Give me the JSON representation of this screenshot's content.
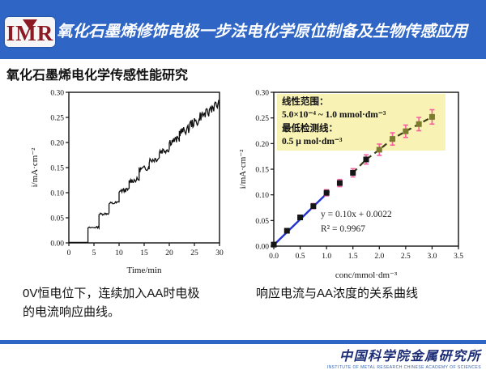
{
  "header": {
    "logo_text": "IMR",
    "title": "氧化石墨烯修饰电极一步法电化学原位制备及生物传感应用",
    "bg_color": "#2f66c6",
    "logo_color": "#8b1a24"
  },
  "subtitle": "氧化石墨烯电化学传感性能研究",
  "captions": {
    "left": "0V恒电位下，连续加入AA时电极\n的电流响应曲线。",
    "right": "响应电流与AA浓度的关系曲线"
  },
  "footer": {
    "institute_cn": "中国科学院金属研究所",
    "institute_en": "INSTITUTE OF METAL RESEARCH CHINESE ACADEMY OF SCIENCES",
    "bar_color": "#2f66c6",
    "text_color": "#1c2d78"
  },
  "chart_data": [
    {
      "type": "line",
      "title": "",
      "xlabel": "Time/min",
      "ylabel": "i/mA·cm⁻²",
      "xlim": [
        0,
        30
      ],
      "ylim": [
        0,
        0.3
      ],
      "xticks": [
        "0",
        "5",
        "10",
        "15",
        "20",
        "25",
        "30"
      ],
      "yticks": [
        "0.00",
        "0.05",
        "0.10",
        "0.15",
        "0.20",
        "0.25",
        "0.30"
      ],
      "line_color": "#111111",
      "description": "Amperometric staircase current response at 0 V with successive AA additions",
      "step_times": [
        0,
        3.8,
        6,
        8,
        10,
        12,
        14,
        16,
        18,
        20,
        22,
        24,
        26,
        28,
        30
      ],
      "step_levels": [
        0.001,
        0.03,
        0.057,
        0.078,
        0.103,
        0.123,
        0.146,
        0.164,
        0.182,
        0.201,
        0.22,
        0.236,
        0.252,
        0.268
      ]
    },
    {
      "type": "scatter",
      "title": "",
      "xlabel": "conc/mmol·dm⁻³",
      "ylabel": "i/mA·cm⁻²",
      "xlim": [
        0,
        3.5
      ],
      "ylim": [
        0,
        0.3
      ],
      "xticks": [
        "0.0",
        "0.5",
        "1.0",
        "1.5",
        "2.0",
        "2.5",
        "3.0",
        "3.5"
      ],
      "yticks": [
        "0.00",
        "0.05",
        "0.10",
        "0.15",
        "0.20",
        "0.25",
        "0.30"
      ],
      "x": [
        0,
        0.25,
        0.5,
        0.75,
        1.0,
        1.25,
        1.5,
        1.75,
        2.0,
        2.25,
        2.5,
        2.75,
        3.0
      ],
      "y": [
        0.003,
        0.03,
        0.056,
        0.078,
        0.104,
        0.123,
        0.143,
        0.169,
        0.188,
        0.209,
        0.224,
        0.238,
        0.252
      ],
      "yerr": [
        0.003,
        0.004,
        0.004,
        0.005,
        0.006,
        0.007,
        0.008,
        0.009,
        0.011,
        0.012,
        0.012,
        0.013,
        0.014
      ],
      "fit_label_1": "y = 0.10x + 0.0022",
      "fit_label_2": "R² = 0.9967",
      "fit_slope": 0.1,
      "fit_intercept": 0.0022,
      "fit_range": [
        0,
        1.05
      ],
      "dash_range_start_index": 6,
      "annotation": {
        "lines": [
          "线性范围：",
          "5.0×10⁻⁴ ~ 1.0 mmol·dm⁻³",
          "最低检测线：",
          "0.5 μ mol·dm⁻³"
        ],
        "bg_color": "#f8f2b4"
      },
      "colors": {
        "fit_line": "#2233cc",
        "marker_low": "#151515",
        "marker_high": "#7c7c2e",
        "error_bar": "#f55fa0",
        "dash_line": "#3c3c14"
      }
    }
  ]
}
